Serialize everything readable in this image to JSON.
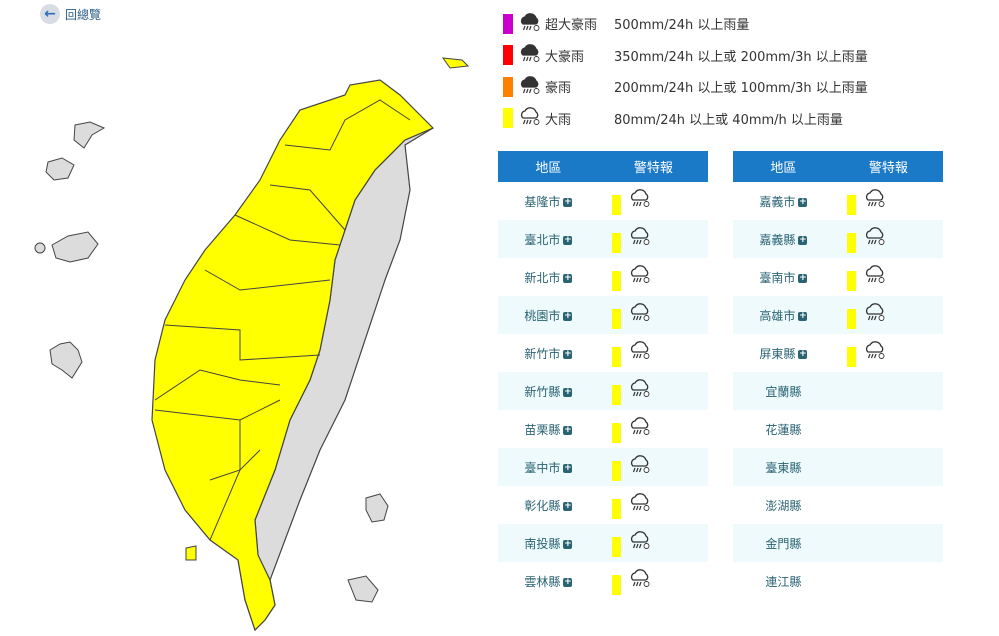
{
  "back": {
    "label": "回總覽"
  },
  "legend": [
    {
      "name": "超大豪雨",
      "desc": "500mm/24h 以上雨量",
      "color": "#cc00cc",
      "icon": "heavy-rain-filled"
    },
    {
      "name": "大豪雨",
      "desc": "350mm/24h 以上或 200mm/3h 以上雨量",
      "color": "#ff0000",
      "icon": "heavy-rain-filled"
    },
    {
      "name": "豪雨",
      "desc": "200mm/24h 以上或 100mm/3h 以上雨量",
      "color": "#ff8000",
      "icon": "heavy-rain-filled"
    },
    {
      "name": "大雨",
      "desc": "80mm/24h 以上或 40mm/h 以上雨量",
      "color": "#ffff00",
      "icon": "rain-outline"
    }
  ],
  "table_headers": {
    "region": "地區",
    "warning": "警特報"
  },
  "left_table": [
    {
      "region": "基隆市",
      "warning": "大雨"
    },
    {
      "region": "臺北市",
      "warning": "大雨"
    },
    {
      "region": "新北市",
      "warning": "大雨"
    },
    {
      "region": "桃園市",
      "warning": "大雨"
    },
    {
      "region": "新竹市",
      "warning": "大雨"
    },
    {
      "region": "新竹縣",
      "warning": "大雨"
    },
    {
      "region": "苗栗縣",
      "warning": "大雨"
    },
    {
      "region": "臺中市",
      "warning": "大雨"
    },
    {
      "region": "彰化縣",
      "warning": "大雨"
    },
    {
      "region": "南投縣",
      "warning": "大雨"
    },
    {
      "region": "雲林縣",
      "warning": "大雨"
    }
  ],
  "right_table": [
    {
      "region": "嘉義市",
      "warning": "大雨"
    },
    {
      "region": "嘉義縣",
      "warning": "大雨"
    },
    {
      "region": "臺南市",
      "warning": "大雨"
    },
    {
      "region": "高雄市",
      "warning": "大雨"
    },
    {
      "region": "屏東縣",
      "warning": "大雨"
    },
    {
      "region": "宜蘭縣",
      "warning": null
    },
    {
      "region": "花蓮縣",
      "warning": null
    },
    {
      "region": "臺東縣",
      "warning": null
    },
    {
      "region": "澎湖縣",
      "warning": null
    },
    {
      "region": "金門縣",
      "warning": null
    },
    {
      "region": "連江縣",
      "warning": null
    }
  ],
  "colors": {
    "warning_yellow": "#ffff00",
    "no_warning_gray": "#dcdcdc",
    "header_blue": "#1a7ac8"
  }
}
